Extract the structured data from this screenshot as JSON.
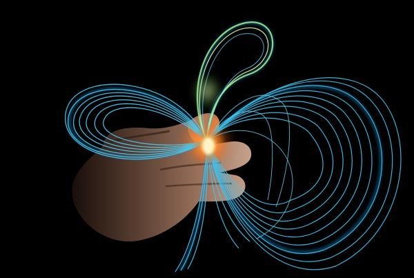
{
  "photo": {
    "background_color": "#000000",
    "fiber_color": "#3fc6f2",
    "fiber_glow_color": "#1e86c8",
    "hot_core_color": "#fff6cc",
    "warm_glow_color": "#ff7a1a",
    "skin_color": "#c49a7e",
    "skin_shadow_color": "#3a2418"
  }
}
